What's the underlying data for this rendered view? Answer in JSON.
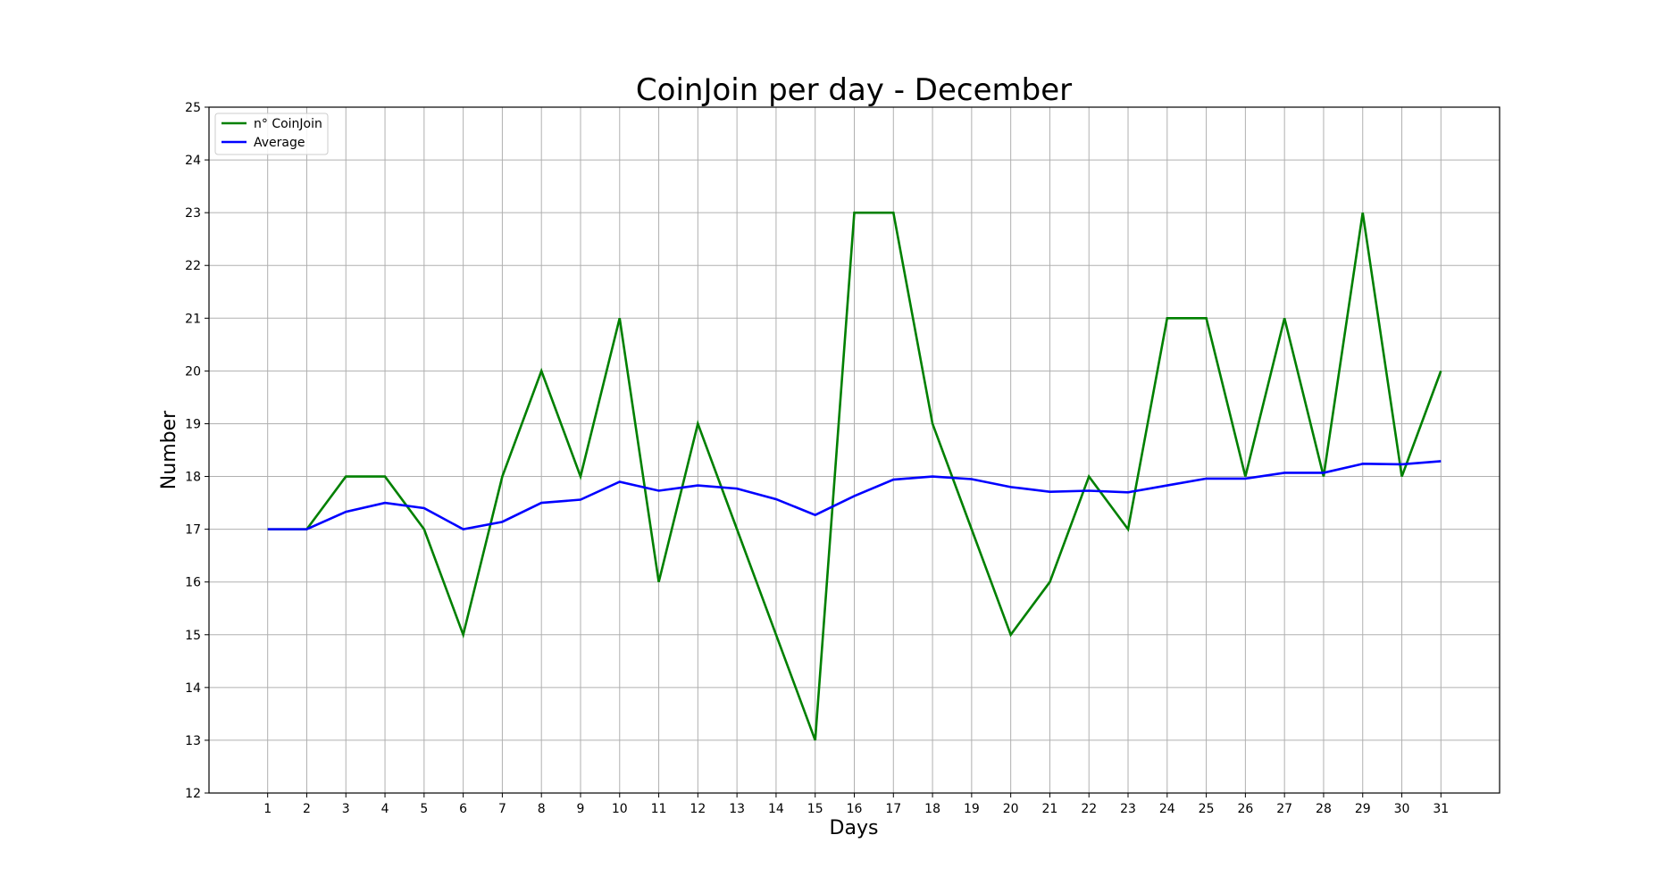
{
  "chart_data": {
    "type": "line",
    "title": "CoinJoin per day - December",
    "xlabel": "Days",
    "ylabel": "Number",
    "x": [
      1,
      2,
      3,
      4,
      5,
      6,
      7,
      8,
      9,
      10,
      11,
      12,
      13,
      14,
      15,
      16,
      17,
      18,
      19,
      20,
      21,
      22,
      23,
      24,
      25,
      26,
      27,
      28,
      29,
      30,
      31
    ],
    "xlim": [
      -0.5,
      32.5
    ],
    "ylim": [
      12,
      25
    ],
    "yticks": [
      12,
      13,
      14,
      15,
      16,
      17,
      18,
      19,
      20,
      21,
      22,
      23,
      24,
      25
    ],
    "grid": true,
    "legend_position": "top-left",
    "series": [
      {
        "name": "n° CoinJoin",
        "color": "#008000",
        "values": [
          17,
          17,
          18,
          18,
          17,
          15,
          18,
          20,
          18,
          21,
          16,
          19,
          17,
          15,
          13,
          23,
          23,
          19,
          17,
          15,
          16,
          18,
          17,
          21,
          21,
          18,
          21,
          18,
          23,
          18,
          20
        ]
      },
      {
        "name": "Average",
        "color": "#0000ff",
        "values": [
          17,
          17,
          17.33,
          17.5,
          17.4,
          17,
          17.14,
          17.5,
          17.56,
          17.9,
          17.73,
          17.83,
          17.77,
          17.57,
          17.27,
          17.63,
          17.94,
          18,
          17.95,
          17.8,
          17.71,
          17.73,
          17.7,
          17.83,
          17.96,
          17.96,
          18.07,
          18.07,
          18.24,
          18.23,
          18.29
        ]
      }
    ]
  }
}
